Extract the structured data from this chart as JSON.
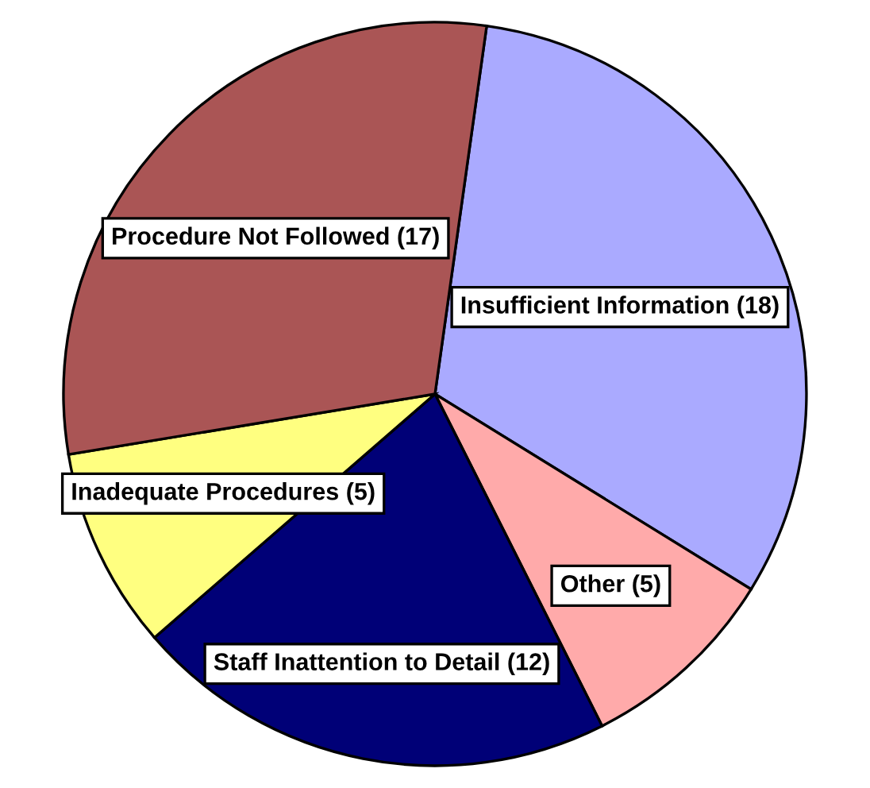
{
  "chart_data": {
    "type": "pie",
    "categories": [
      "Insufficient Information (18)",
      "Other (5)",
      "Staff Inattention to Detail (12)",
      "Inadequate Procedures (5)",
      "Procedure Not Followed (17)"
    ],
    "values": [
      18,
      5,
      12,
      5,
      17
    ],
    "colors": [
      "#aaaaff",
      "#ffaaaa",
      "#000077",
      "#ffff80",
      "#aa5555"
    ]
  }
}
